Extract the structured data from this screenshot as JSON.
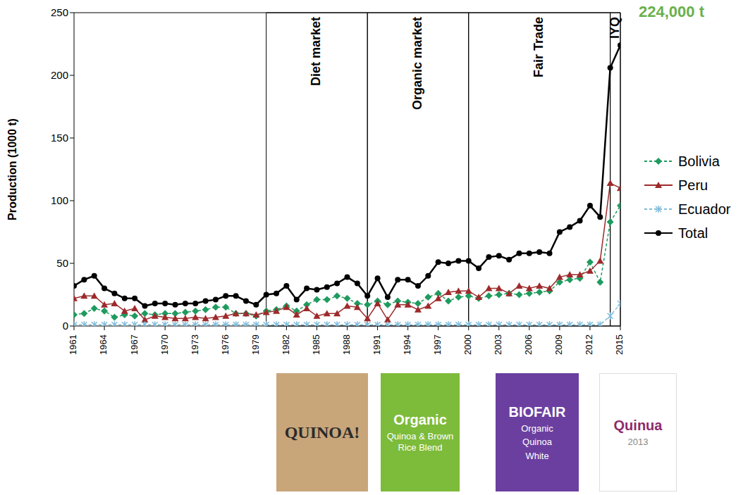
{
  "chart_data": {
    "type": "line",
    "y_label": "Production (1000 t)",
    "x": [
      1961,
      1962,
      1963,
      1964,
      1965,
      1966,
      1967,
      1968,
      1969,
      1970,
      1971,
      1972,
      1973,
      1974,
      1975,
      1976,
      1977,
      1978,
      1979,
      1980,
      1981,
      1982,
      1983,
      1984,
      1985,
      1986,
      1987,
      1988,
      1989,
      1990,
      1991,
      1992,
      1993,
      1994,
      1995,
      1996,
      1997,
      1998,
      1999,
      2000,
      2001,
      2002,
      2003,
      2004,
      2005,
      2006,
      2007,
      2008,
      2009,
      2010,
      2011,
      2012,
      2013,
      2014,
      2015
    ],
    "xlim": [
      1961,
      2015
    ],
    "xticks": [
      1961,
      1964,
      1967,
      1970,
      1973,
      1976,
      1979,
      1982,
      1985,
      1988,
      1991,
      1994,
      1997,
      2000,
      2003,
      2006,
      2009,
      2012,
      2015
    ],
    "ylim": [
      0,
      250
    ],
    "yticks": [
      0,
      50,
      100,
      150,
      200,
      250
    ],
    "grid": false,
    "legend": "right",
    "series": [
      {
        "name": "Bolivia",
        "color": "#1e9b5e",
        "marker": "diamond",
        "line_style": "dashed",
        "values": [
          9,
          10,
          14,
          12,
          7,
          9,
          8,
          10,
          9,
          10,
          10,
          11,
          12,
          13,
          15,
          15,
          10,
          10,
          8,
          12,
          13,
          16,
          12,
          17,
          21,
          21,
          24,
          22,
          18,
          17,
          20,
          17,
          20,
          19,
          18,
          23,
          26,
          20,
          23,
          24,
          22,
          24,
          25,
          26,
          25,
          26,
          27,
          28,
          35,
          37,
          38,
          51,
          35,
          83,
          96
        ]
      },
      {
        "name": "Peru",
        "color": "#9e2a2b",
        "marker": "triangle",
        "line_style": "solid",
        "values": [
          22,
          24,
          24,
          17,
          18,
          12,
          14,
          5,
          8,
          7,
          6,
          6,
          7,
          6,
          7,
          8,
          10,
          10,
          9,
          11,
          12,
          15,
          9,
          14,
          8,
          10,
          10,
          16,
          15,
          6,
          18,
          5,
          17,
          17,
          13,
          16,
          22,
          27,
          28,
          28,
          23,
          30,
          30,
          26,
          32,
          30,
          32,
          30,
          39,
          41,
          41,
          44,
          52,
          114,
          110
        ]
      },
      {
        "name": "Ecuador",
        "color": "#7fbcd9",
        "marker": "asterisk",
        "line_style": "dashed",
        "values": [
          1,
          1,
          1,
          1,
          1,
          1,
          1,
          1,
          1,
          1,
          1,
          1,
          1,
          1,
          1,
          1,
          1,
          1,
          1,
          1,
          1,
          1,
          1,
          1,
          1,
          1,
          1,
          1,
          1,
          1,
          1,
          1,
          1,
          1,
          1,
          1,
          1,
          1,
          1,
          1,
          1,
          1,
          1,
          1,
          1,
          1,
          1,
          1,
          1,
          1,
          1,
          1,
          1,
          8,
          18
        ]
      },
      {
        "name": "Total",
        "color": "#000000",
        "marker": "circle",
        "line_style": "solid",
        "values": [
          32,
          37,
          40,
          30,
          26,
          22,
          22,
          16,
          18,
          18,
          17,
          18,
          18,
          20,
          21,
          24,
          24,
          20,
          17,
          25,
          26,
          32,
          21,
          30,
          29,
          31,
          34,
          39,
          34,
          24,
          38,
          23,
          37,
          37,
          32,
          40,
          51,
          50,
          52,
          52,
          46,
          55,
          56,
          53,
          58,
          58,
          59,
          58,
          75,
          79,
          84,
          96,
          87,
          206,
          224
        ]
      }
    ],
    "periods": [
      {
        "label": "Diet market",
        "x1": 1980,
        "x2": 1990
      },
      {
        "label": "Organic market",
        "x1": 1990,
        "x2": 2000
      },
      {
        "label": "Fair Trade",
        "x1": 2000,
        "x2": 2014
      },
      {
        "label": "IYQ",
        "x1": 2014,
        "x2": 2015
      }
    ],
    "callout": {
      "text": "224,000 t",
      "color": "#6ab04c"
    }
  },
  "images": [
    {
      "texts": [
        "QUINOA!"
      ],
      "color": "#c9a57a"
    },
    {
      "texts": [
        "Organic",
        "Quinoa & Brown Rice Blend"
      ],
      "color": "#7dbb3a"
    },
    {
      "texts": [
        "BIOFAIR",
        "Organic",
        "Quinoa",
        "White"
      ],
      "color": "#6b3fa0"
    },
    {
      "texts": [
        "Quinua",
        "2013"
      ],
      "color": "#8e2a6b"
    }
  ]
}
